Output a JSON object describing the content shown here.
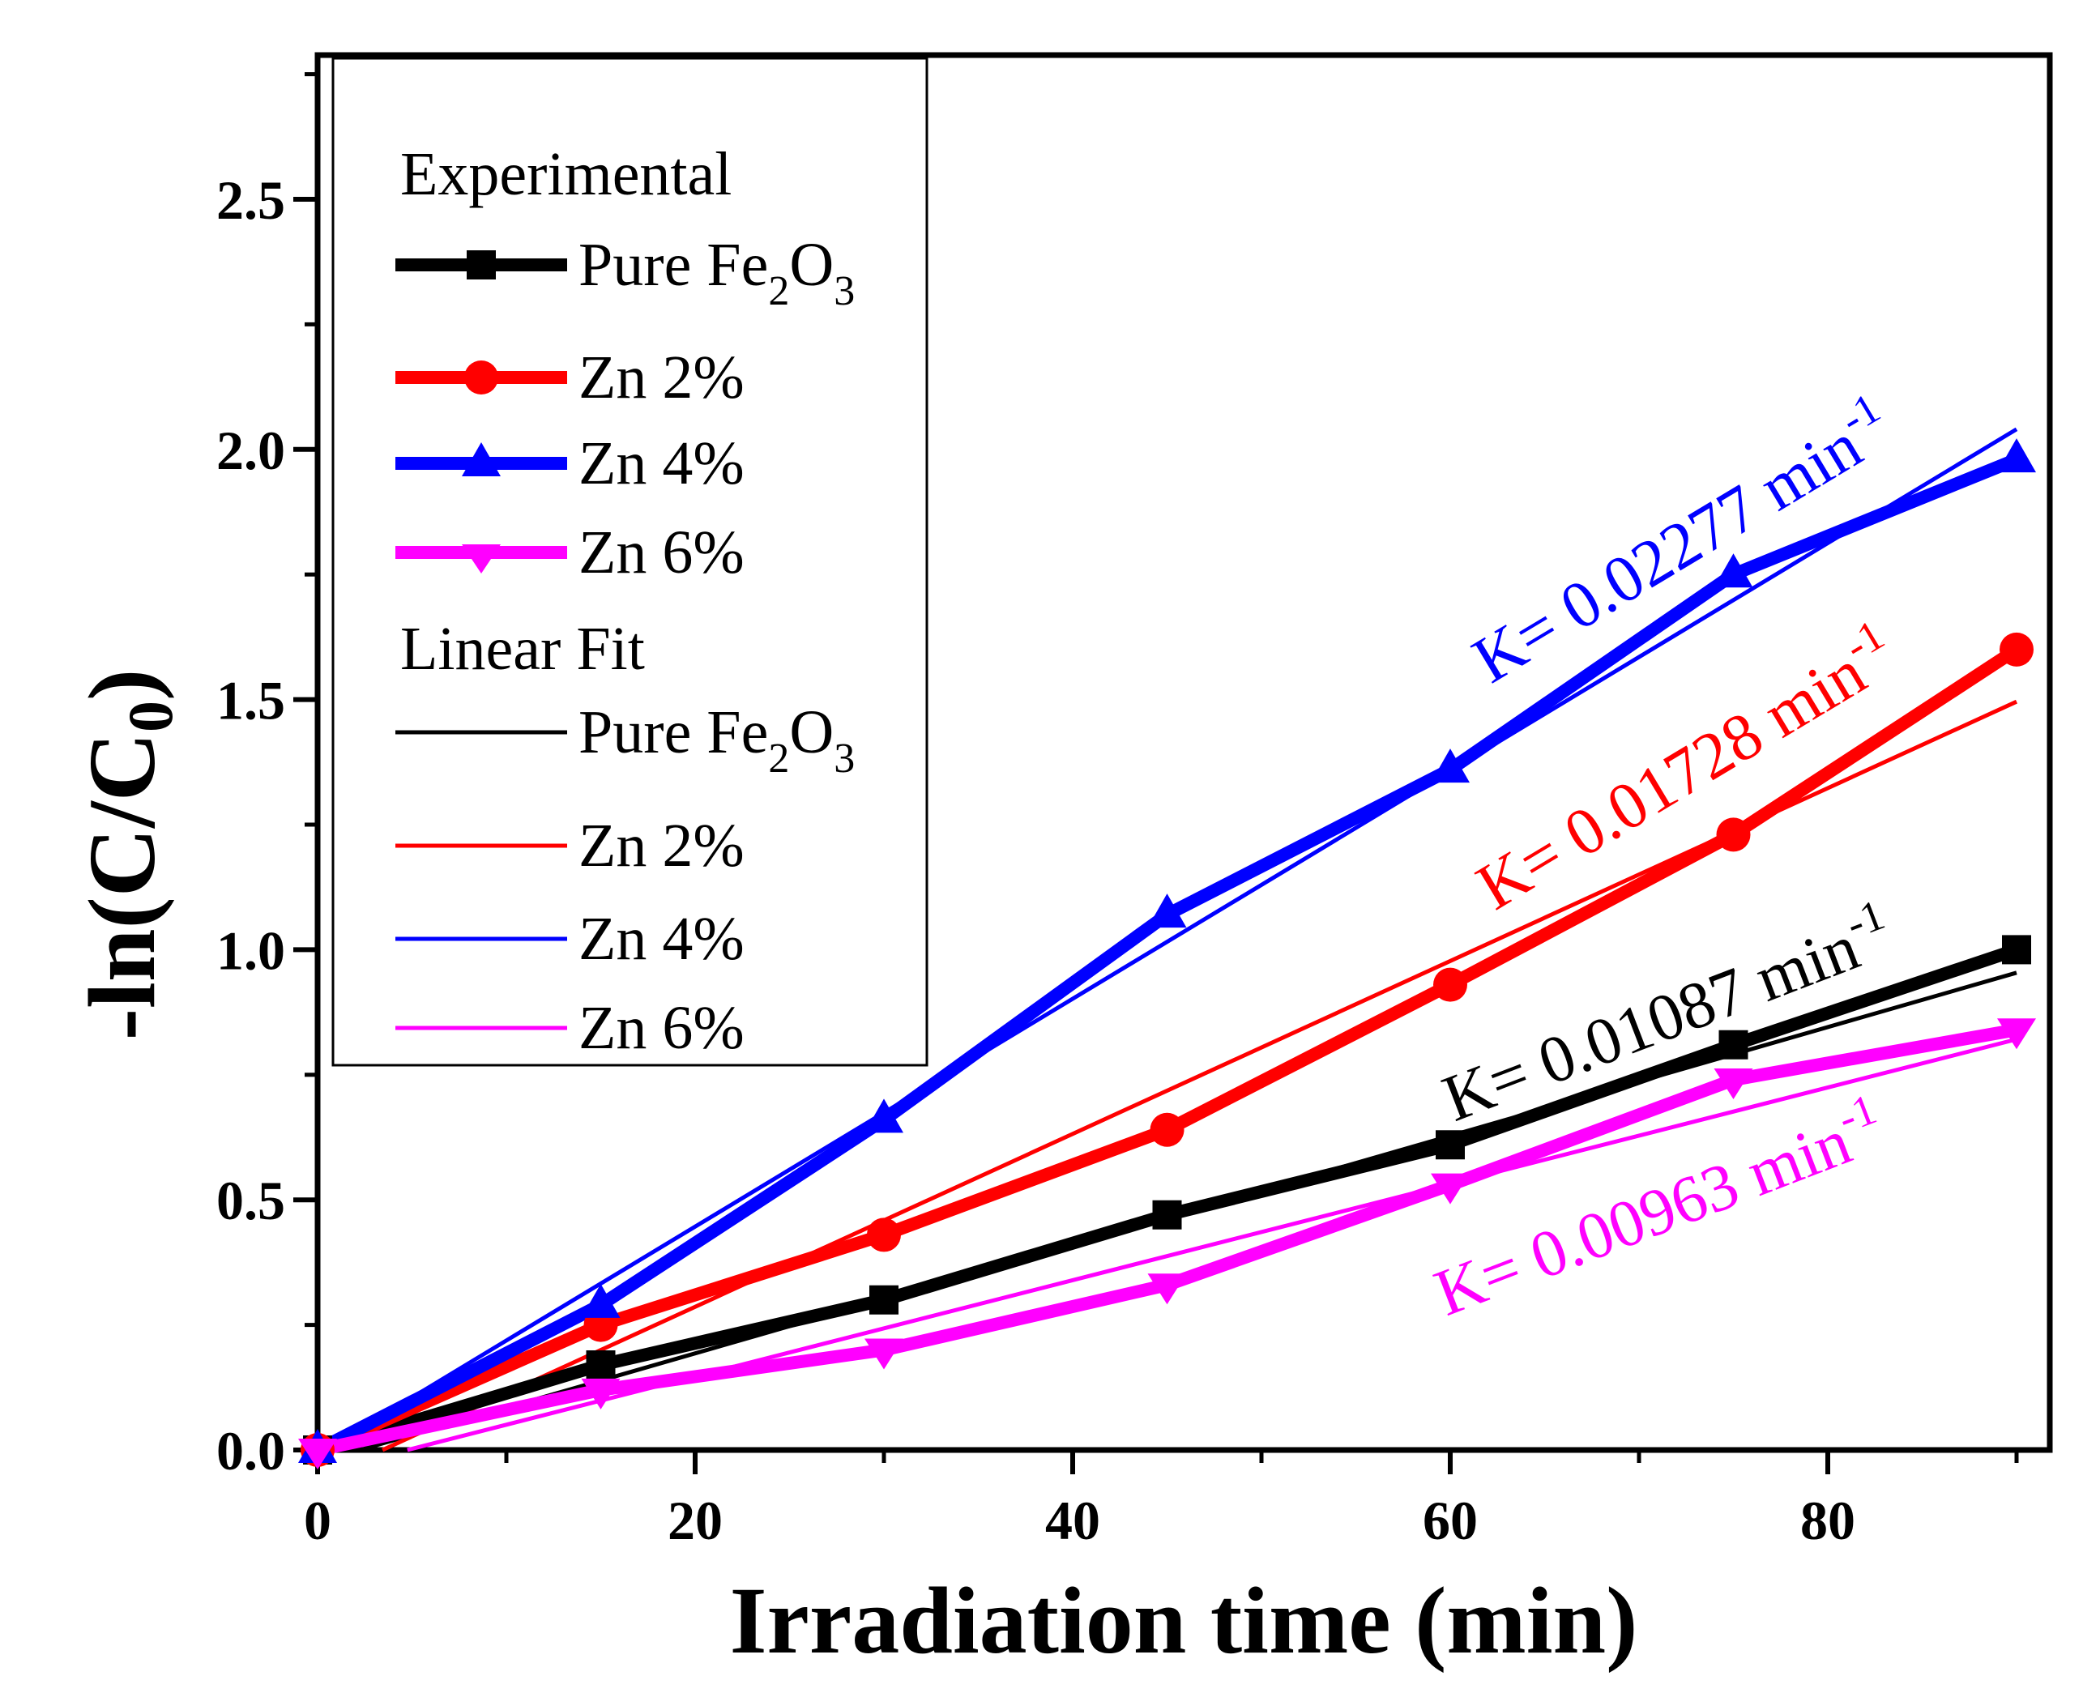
{
  "chart_data": {
    "type": "line",
    "xlabel": "Irradiation time (min)",
    "ylabel": "-ln(C/C0)",
    "ylabel_main": "-ln(C/C",
    "ylabel_sub": "0",
    "ylabel_close": ")",
    "xlim": [
      0,
      92
    ],
    "ylim": [
      0,
      2.8
    ],
    "x_ticks": [
      "0",
      "20",
      "40",
      "60",
      "80"
    ],
    "x_tick_values": [
      0,
      20,
      40,
      60,
      80
    ],
    "y_ticks": [
      "0.0",
      "0.5",
      "1.0",
      "1.5",
      "2.0",
      "2.5"
    ],
    "y_tick_values": [
      0,
      0.5,
      1.0,
      1.5,
      2.0,
      2.5
    ],
    "grid": false,
    "legend_position": "top-left",
    "series": [
      {
        "name": "Pure Fe2O3",
        "label_main": "Pure Fe",
        "label_sub1": "2",
        "label_mid": "O",
        "label_sub2": "3",
        "color": "#000000",
        "marker": "square",
        "x": [
          0,
          15,
          30,
          45,
          60,
          75,
          90
        ],
        "values": [
          0.0,
          0.17,
          0.3,
          0.47,
          0.61,
          0.81,
          1.0
        ],
        "fit_slope": 0.01087,
        "fit_intercept": -0.0243,
        "k_label": "K= 0.01087 min",
        "k_exp": "-1"
      },
      {
        "name": "Zn 2%",
        "label_main": "Zn 2%",
        "color": "#ff0000",
        "marker": "circle",
        "x": [
          0,
          15,
          30,
          45,
          60,
          75,
          90
        ],
        "values": [
          0.0,
          0.25,
          0.43,
          0.64,
          0.93,
          1.23,
          1.6
        ],
        "fit_slope": 0.01728,
        "fit_intercept": -0.0594,
        "k_label": "K= 0.01728 min",
        "k_exp": "-1"
      },
      {
        "name": "Zn 4%",
        "label_main": "Zn 4%",
        "color": "#0000ff",
        "marker": "triangle-up",
        "x": [
          0,
          15,
          30,
          45,
          60,
          75,
          90
        ],
        "values": [
          0.0,
          0.29,
          0.66,
          1.07,
          1.36,
          1.75,
          1.98
        ],
        "fit_slope": 0.02277,
        "fit_intercept": -0.0089,
        "k_label": "K= 0.02277 min",
        "k_exp": "-1"
      },
      {
        "name": "Zn 6%",
        "label_main": "Zn 6%",
        "color": "#ff00ff",
        "marker": "triangle-down",
        "x": [
          0,
          15,
          30,
          45,
          60,
          75,
          90
        ],
        "values": [
          0.0,
          0.12,
          0.2,
          0.33,
          0.53,
          0.74,
          0.84
        ],
        "fit_slope": 0.00963,
        "fit_intercept": -0.0458,
        "k_label": "K= 0.00963 min",
        "k_exp": "-1"
      }
    ],
    "legend": {
      "experimental_title": "Experimental",
      "fit_title": "Linear Fit"
    }
  }
}
